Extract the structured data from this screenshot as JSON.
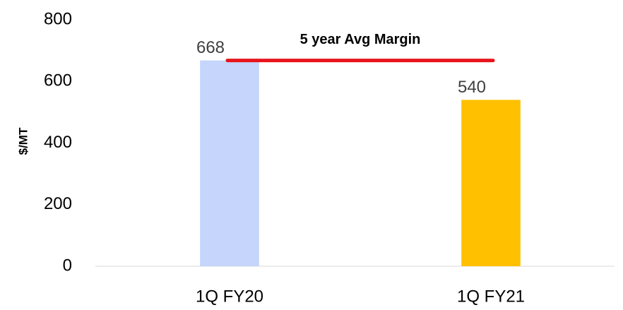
{
  "chart_data": {
    "type": "bar",
    "y_axis_label": "$/MT",
    "categories": [
      "1Q FY20",
      "1Q FY21"
    ],
    "values": [
      668,
      540
    ],
    "colors": [
      "#c5d5fb",
      "#ffc000"
    ],
    "ylim": [
      0,
      800
    ],
    "yticks": [
      0,
      200,
      400,
      600,
      800
    ],
    "grid": false,
    "reference_line": {
      "label": "5 year Avg Margin",
      "value": 668,
      "color": "#e8141b"
    }
  }
}
